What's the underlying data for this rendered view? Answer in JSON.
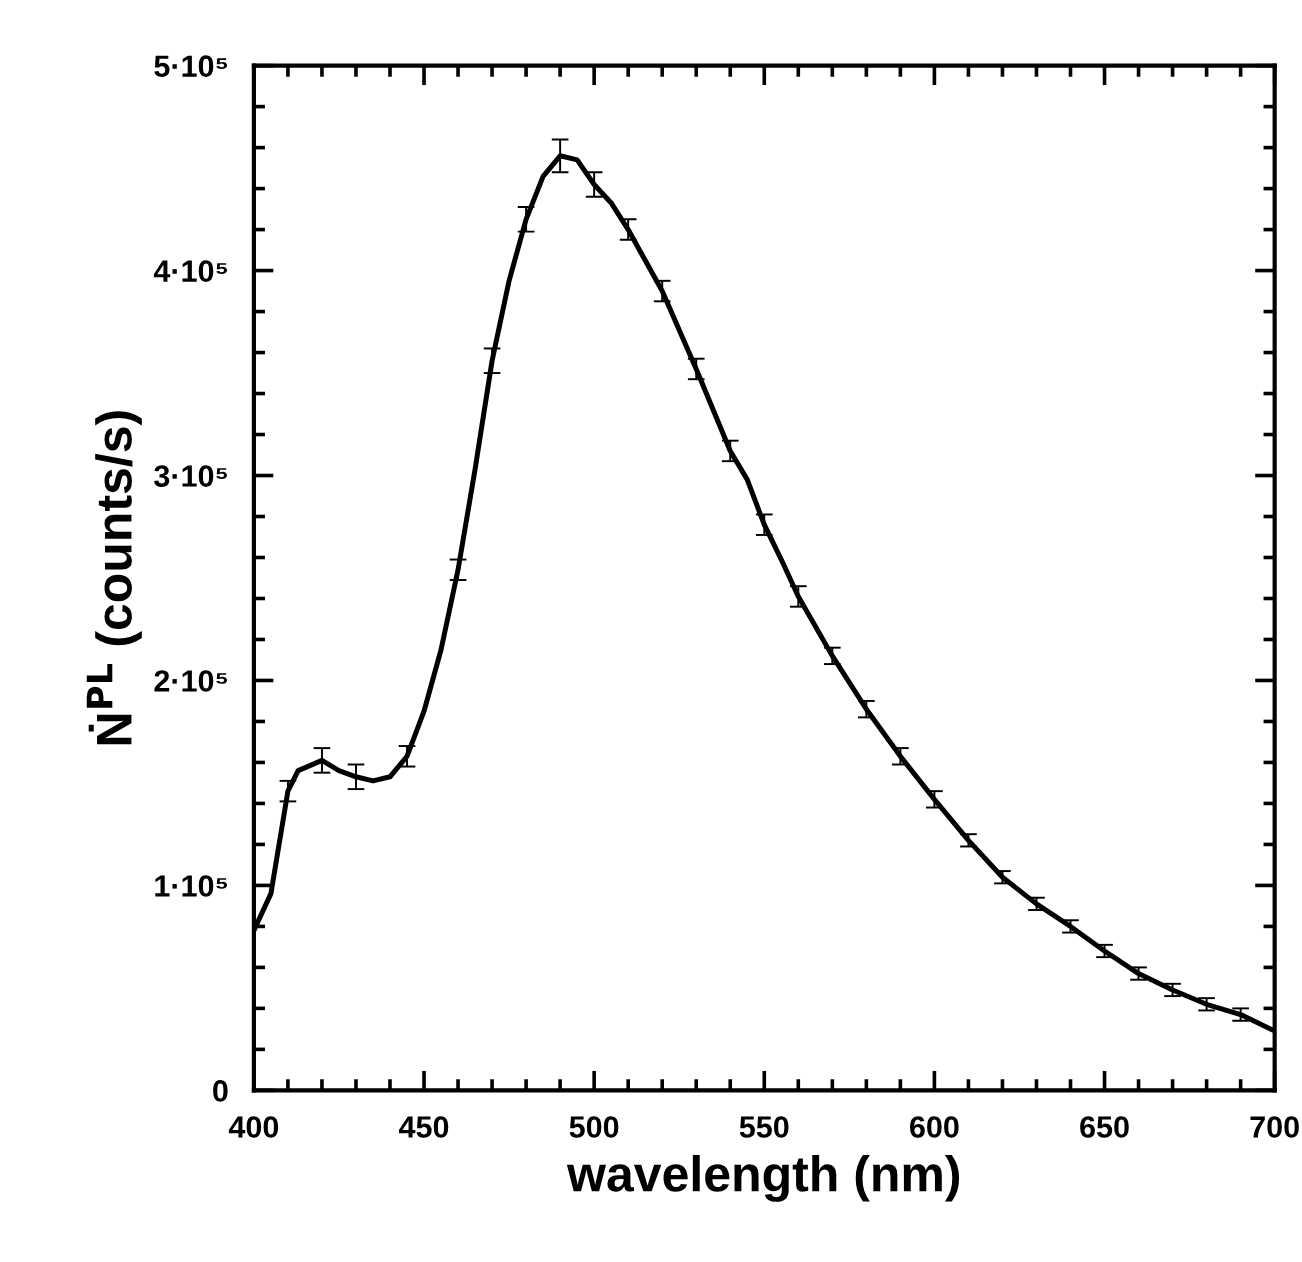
{
  "chart_data": {
    "type": "line",
    "xlabel": "wavelength (nm)",
    "ylabel": "Ṅ$^{PL}$ (counts/s)",
    "xlim": [
      400,
      700
    ],
    "xticks": [
      400,
      450,
      500,
      550,
      600,
      650,
      700
    ],
    "ylim": [
      0,
      500000
    ],
    "yticks": [
      {
        "value": 0,
        "label": "0"
      },
      {
        "value": 100000,
        "label": "1·10⁵"
      },
      {
        "value": 200000,
        "label": "2·10⁵"
      },
      {
        "value": 300000,
        "label": "3·10⁵"
      },
      {
        "value": 400000,
        "label": "4·10⁵"
      },
      {
        "value": 500000,
        "label": "5·10⁵"
      }
    ],
    "grid": false,
    "marker": "none",
    "line_style": "solid",
    "series": [
      {
        "color": "#000000",
        "x": [
          400,
          405,
          410,
          413,
          420,
          425,
          430,
          435,
          440,
          445,
          450,
          455,
          460,
          465,
          470,
          475,
          480,
          485,
          490,
          495,
          500,
          505,
          510,
          515,
          520,
          525,
          530,
          535,
          540,
          545,
          550,
          555,
          560,
          570,
          580,
          590,
          600,
          610,
          620,
          630,
          640,
          650,
          660,
          670,
          680,
          690,
          700
        ],
        "values": [
          78000,
          96000,
          146000,
          156000,
          161000,
          156000,
          153000,
          151000,
          153000,
          163000,
          185000,
          215000,
          254000,
          303000,
          356000,
          395000,
          425000,
          446000,
          456000,
          454000,
          442000,
          433000,
          420000,
          405000,
          390000,
          371000,
          352000,
          332000,
          312000,
          298000,
          276000,
          259000,
          241000,
          212000,
          186000,
          163000,
          142000,
          122000,
          104000,
          91000,
          80000,
          68000,
          57000,
          49000,
          42000,
          37000,
          29000
        ],
        "errors": [
          null,
          null,
          5000,
          null,
          6000,
          null,
          6000,
          null,
          null,
          5000,
          null,
          null,
          5000,
          null,
          6000,
          null,
          6000,
          null,
          8000,
          null,
          6000,
          null,
          5000,
          null,
          5000,
          null,
          5000,
          null,
          5000,
          null,
          5000,
          null,
          5000,
          4000,
          4000,
          4000,
          4000,
          3000,
          3000,
          3000,
          3000,
          3000,
          3000,
          3000,
          3000,
          3000,
          null
        ]
      }
    ]
  }
}
